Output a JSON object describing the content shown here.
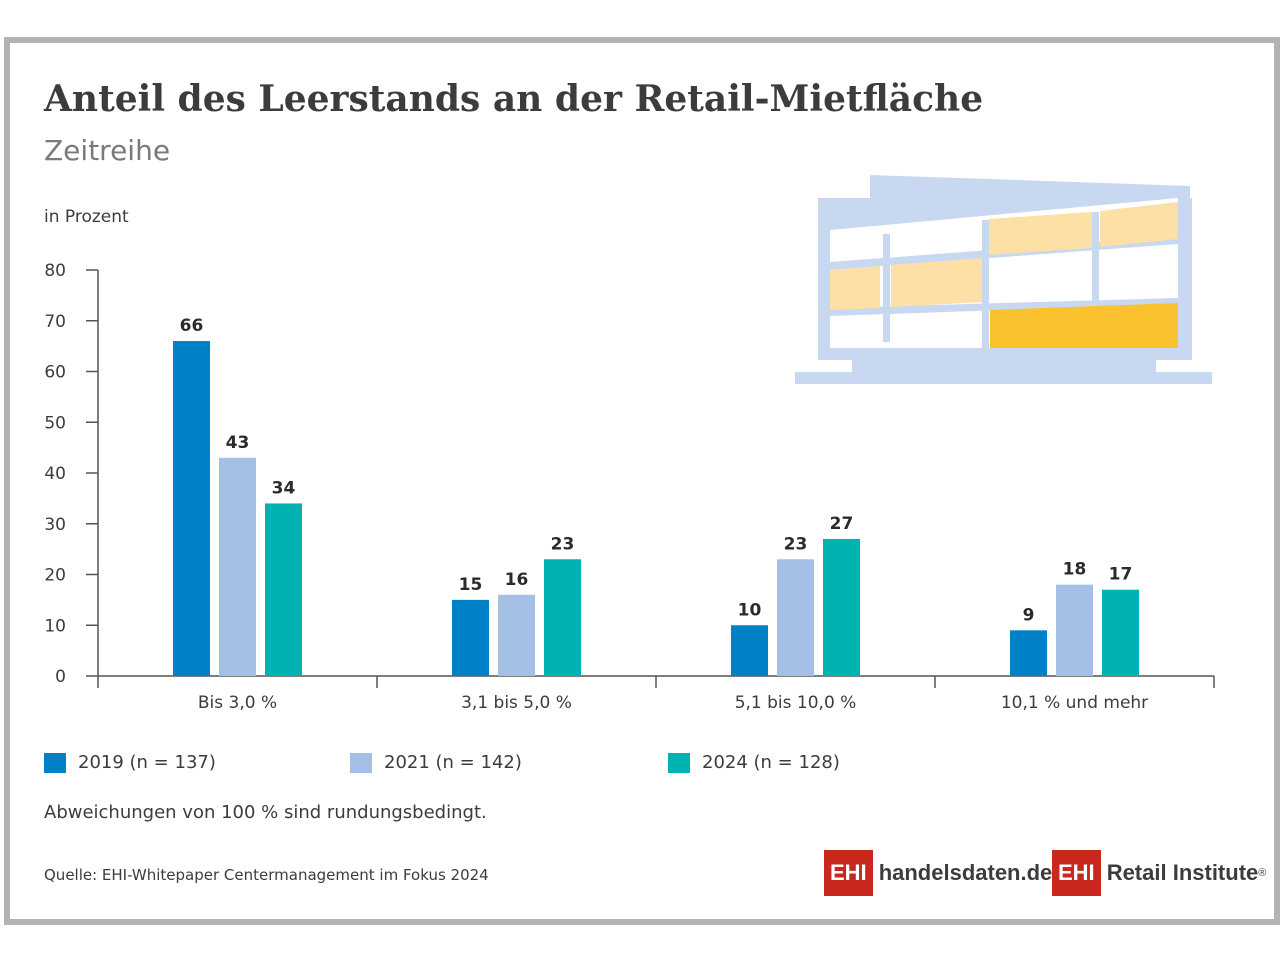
{
  "title": "Anteil des Leerstands an der Retail-Mietfläche",
  "subtitle": "Zeitreihe",
  "unit_label": "in Prozent",
  "note": "Abweichungen von 100 % sind rundungsbedingt.",
  "source": "Quelle: EHI-Whitepaper Centermanagement im Fokus 2024",
  "logos": {
    "left_box": "EHI",
    "left_text": "handelsdaten.de",
    "right_box": "EHI",
    "right_text": "Retail Institute",
    "right_reg": "®"
  },
  "colors": {
    "s2019": "#0080c6",
    "s2021": "#a4c0e6",
    "s2024": "#00b2b2",
    "building": "#c8d8f0",
    "window_light": "#fde0a6",
    "window_dark": "#fbc230"
  },
  "illustration": "building-icon",
  "chart_data": {
    "type": "bar",
    "title": "Anteil des Leerstands an der Retail-Mietfläche",
    "subtitle": "Zeitreihe",
    "ylabel": "in Prozent",
    "xlabel": "",
    "ylim": [
      0,
      80
    ],
    "yticks": [
      0,
      10,
      20,
      30,
      40,
      50,
      60,
      70,
      80
    ],
    "categories": [
      "Bis 3,0 %",
      "3,1 bis 5,0 %",
      "5,1 bis 10,0 %",
      "10,1 % und mehr"
    ],
    "series": [
      {
        "name": "2019 (n = 137)",
        "values": [
          66,
          15,
          10,
          9
        ],
        "color": "#0080c6"
      },
      {
        "name": "2021 (n = 142)",
        "values": [
          43,
          16,
          23,
          18
        ],
        "color": "#a4c0e6"
      },
      {
        "name": "2024 (n = 128)",
        "values": [
          34,
          23,
          27,
          17
        ],
        "color": "#00b2b2"
      }
    ],
    "grid": false,
    "legend": "bottom"
  }
}
